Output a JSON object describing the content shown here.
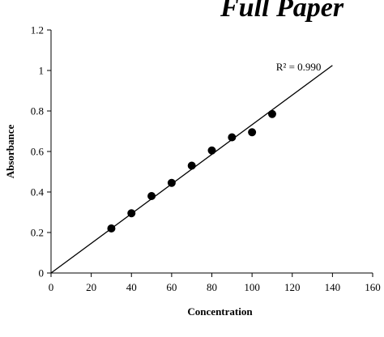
{
  "header": {
    "text": "Full Paper"
  },
  "chart_data": {
    "type": "scatter",
    "title": "",
    "xlabel": "Concentration",
    "ylabel": "Absorbance",
    "xlim": [
      0,
      160
    ],
    "ylim": [
      0,
      1.2
    ],
    "xticks": [
      0,
      20,
      40,
      60,
      80,
      100,
      120,
      140,
      160
    ],
    "yticks": [
      0,
      0.2,
      0.4,
      0.6,
      0.8,
      1,
      1.2
    ],
    "xtick_labels": [
      "0",
      "20",
      "40",
      "60",
      "80",
      "100",
      "120",
      "140",
      "160"
    ],
    "ytick_labels": [
      "0",
      "0.2",
      "0.4",
      "0.6",
      "0.8",
      "1",
      "1.2"
    ],
    "grid": false,
    "legend": "none",
    "points": [
      {
        "x": 30,
        "y": 0.22
      },
      {
        "x": 40,
        "y": 0.295
      },
      {
        "x": 50,
        "y": 0.38
      },
      {
        "x": 60,
        "y": 0.445
      },
      {
        "x": 70,
        "y": 0.53
      },
      {
        "x": 80,
        "y": 0.605
      },
      {
        "x": 90,
        "y": 0.67
      },
      {
        "x": 100,
        "y": 0.695
      },
      {
        "x": 110,
        "y": 0.785
      }
    ],
    "trendline": {
      "x_start": 0,
      "y_start": 0,
      "x_end": 140,
      "y_end": 1.025
    },
    "annotation": {
      "text": "R² = 0.990",
      "x": 128,
      "y": 1.0
    },
    "colors": {
      "points": "#000000",
      "line": "#000000"
    }
  }
}
